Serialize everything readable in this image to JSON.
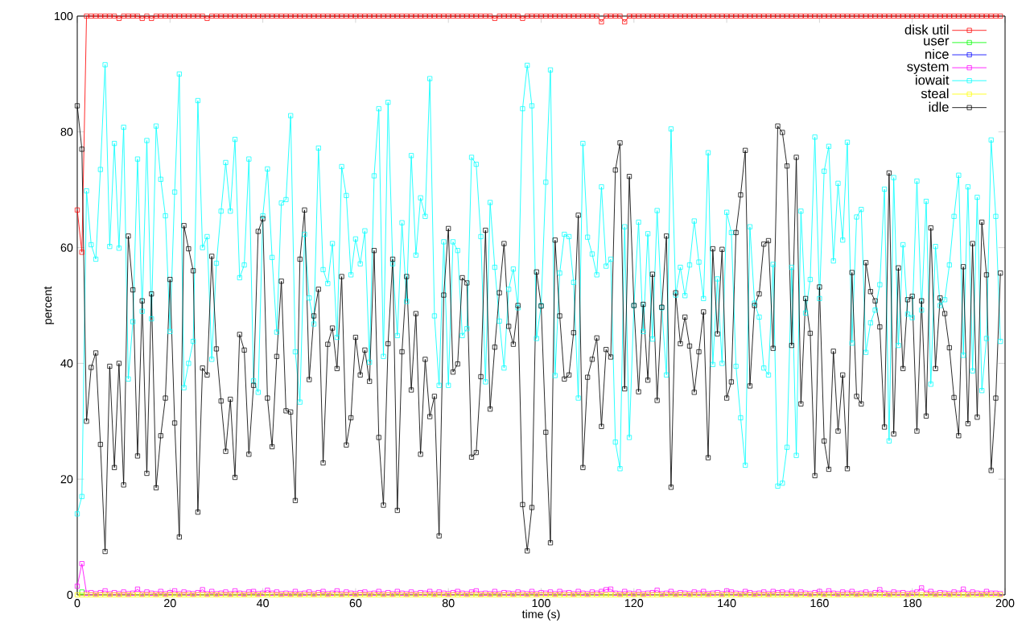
{
  "chart_data": {
    "type": "line",
    "xlabel": "time (s)",
    "ylabel": "percent",
    "x": [
      0,
      1,
      2,
      3,
      4,
      5,
      6,
      7,
      8,
      9,
      10,
      11,
      12,
      13,
      14,
      15,
      16,
      17,
      18,
      19,
      20,
      21,
      22,
      23,
      24,
      25,
      26,
      27,
      28,
      29,
      30,
      31,
      32,
      33,
      34,
      35,
      36,
      37,
      38,
      39,
      40,
      41,
      42,
      43,
      44,
      45,
      46,
      47,
      48,
      49,
      50,
      51,
      52,
      53,
      54,
      55,
      56,
      57,
      58,
      59,
      60,
      61,
      62,
      63,
      64,
      65,
      66,
      67,
      68,
      69,
      70,
      71,
      72,
      73,
      74,
      75,
      76,
      77,
      78,
      79,
      80,
      81,
      82,
      83,
      84,
      85,
      86,
      87,
      88,
      89,
      90,
      91,
      92,
      93,
      94,
      95,
      96,
      97,
      98,
      99,
      100,
      101,
      102,
      103,
      104,
      105,
      106,
      107,
      108,
      109,
      110,
      111,
      112,
      113,
      114,
      115,
      116,
      117,
      118,
      119,
      120,
      121,
      122,
      123,
      124,
      125,
      126,
      127,
      128,
      129,
      130,
      131,
      132,
      133,
      134,
      135,
      136,
      137,
      138,
      139,
      140,
      141,
      142,
      143,
      144,
      145,
      146,
      147,
      148,
      149,
      150,
      151,
      152,
      153,
      154,
      155,
      156,
      157,
      158,
      159,
      160,
      161,
      162,
      163,
      164,
      165,
      166,
      167,
      168,
      169,
      170,
      171,
      172,
      173,
      174,
      175,
      176,
      177,
      178,
      179,
      180,
      181,
      182,
      183,
      184,
      185,
      186,
      187,
      188,
      189,
      190,
      191,
      192,
      193,
      194,
      195,
      196,
      197,
      198,
      199
    ],
    "xlim": [
      0,
      200
    ],
    "ylim": [
      0,
      100
    ],
    "xticks": [
      0,
      20,
      40,
      60,
      80,
      100,
      120,
      140,
      160,
      180,
      200
    ],
    "yticks": [
      0,
      20,
      40,
      60,
      80,
      100
    ],
    "legend": "top right",
    "marker": "square",
    "line_style": "solid",
    "series": [
      {
        "name": "disk util",
        "color": "#ff0000",
        "values": [
          66.5,
          59.2,
          100,
          100,
          100,
          100,
          100,
          100,
          100,
          99.6,
          100,
          100,
          100,
          100,
          99.6,
          100,
          99.6,
          100,
          100,
          100,
          100,
          100,
          100,
          100,
          100,
          100,
          100,
          100,
          99.6,
          100,
          100,
          100,
          100,
          100,
          100,
          100,
          100,
          100,
          100,
          100,
          100,
          100,
          100,
          100,
          100,
          100,
          100,
          100,
          100,
          100,
          100,
          100,
          100,
          100,
          100,
          100,
          100,
          100,
          100,
          100,
          100,
          100,
          100,
          100,
          100,
          100,
          100,
          100,
          100,
          100,
          100,
          100,
          100,
          100,
          100,
          100,
          100,
          100,
          100,
          100,
          100,
          100,
          100,
          100,
          100,
          100,
          100,
          100,
          100,
          100,
          99.6,
          100,
          100,
          100,
          100,
          100,
          99.6,
          100,
          100,
          100,
          100,
          100,
          100,
          100,
          100,
          100,
          100,
          100,
          100,
          100,
          100,
          100,
          100,
          99,
          100,
          100,
          100,
          100,
          99,
          100,
          100,
          100,
          100,
          100,
          100,
          100,
          100,
          100,
          100,
          100,
          100,
          100,
          100,
          100,
          100,
          100,
          100,
          100,
          100,
          100,
          100,
          100,
          100,
          100,
          100,
          100,
          100,
          100,
          100,
          100,
          100,
          100,
          100,
          100,
          100,
          100,
          100,
          100,
          100,
          100,
          100,
          100,
          100,
          100,
          100,
          100,
          100,
          100,
          100,
          100,
          100,
          100,
          100,
          100,
          100,
          100,
          100,
          100,
          100,
          100,
          100,
          100,
          100,
          100,
          100,
          100,
          100,
          100,
          100,
          100,
          100,
          100,
          100,
          100,
          100,
          100,
          100,
          100,
          100,
          100
        ]
      },
      {
        "name": "user",
        "color": "#00ff00",
        "values": [
          null,
          0.5,
          null,
          null,
          null,
          null,
          null,
          null,
          null,
          null,
          null,
          null,
          null,
          null,
          null,
          null,
          null,
          null,
          null,
          null,
          null,
          null,
          null,
          null,
          null,
          null,
          null,
          null,
          null,
          null,
          null,
          null,
          null,
          null,
          null,
          null,
          null,
          null,
          null,
          null,
          null,
          null,
          null,
          null,
          null,
          null,
          null,
          null,
          null,
          null,
          null,
          null,
          null,
          null,
          null,
          null,
          null,
          null,
          null,
          null,
          null,
          null,
          null,
          null,
          null,
          null,
          null,
          null,
          null,
          null,
          null,
          null,
          null,
          null,
          null,
          null,
          null,
          null,
          null,
          null,
          null,
          null,
          null,
          null,
          null,
          null,
          null,
          null,
          null,
          null,
          null,
          null,
          null,
          null,
          null,
          null,
          null,
          null,
          null,
          null,
          null,
          null,
          null,
          null,
          null,
          null,
          null,
          null,
          null,
          null,
          null,
          null,
          null,
          null,
          null,
          null,
          null,
          null,
          null,
          null,
          null,
          null,
          null,
          null,
          null,
          null,
          null,
          null,
          null,
          null,
          null,
          null,
          null,
          null,
          null,
          null,
          null,
          null,
          null,
          null,
          null,
          null,
          null,
          null,
          null,
          null,
          null,
          null,
          null,
          null,
          null,
          null,
          null,
          null,
          null,
          null,
          null,
          null,
          null,
          null,
          null,
          null,
          null,
          null,
          null,
          null,
          null,
          null,
          null,
          null,
          null,
          null,
          null,
          null,
          null,
          null,
          null,
          null,
          null,
          null,
          null,
          null,
          null,
          null,
          null,
          null,
          null,
          null,
          null,
          null,
          null,
          null,
          null,
          null,
          null,
          null,
          null,
          null,
          null,
          null
        ]
      },
      {
        "name": "nice",
        "color": "#0000ff",
        "values": [
          null,
          null,
          null,
          null,
          null,
          null,
          null,
          null,
          null,
          null,
          null,
          null,
          null,
          null,
          null,
          null,
          null,
          null,
          null,
          null,
          null,
          null,
          null,
          null,
          null,
          null,
          null,
          null,
          null,
          null,
          null,
          null,
          null,
          null,
          null,
          null,
          null,
          null,
          null,
          null,
          null,
          null,
          null,
          null,
          null,
          null,
          null,
          null,
          null,
          null,
          null,
          null,
          null,
          null,
          null,
          null,
          null,
          null,
          null,
          null,
          null,
          null,
          null,
          null,
          null,
          null,
          null,
          null,
          null,
          null,
          null,
          null,
          null,
          null,
          null,
          null,
          null,
          null,
          null,
          null,
          null,
          null,
          null,
          null,
          null,
          null,
          null,
          null,
          null,
          null,
          null,
          null,
          null,
          null,
          null,
          null,
          null,
          null,
          null,
          null,
          null,
          null,
          null,
          null,
          null,
          null,
          null,
          null,
          null,
          null,
          null,
          null,
          null,
          null,
          null,
          null,
          null,
          null,
          null,
          null,
          null,
          null,
          null,
          null,
          null,
          null,
          null,
          null,
          null,
          null,
          null,
          null,
          null,
          null,
          null,
          null,
          null,
          null,
          null,
          null,
          null,
          null,
          null,
          null,
          null,
          null,
          null,
          null,
          null,
          null,
          null,
          null,
          null,
          null,
          null,
          null,
          null,
          null,
          null,
          null,
          null,
          null,
          null,
          null,
          null,
          null,
          null,
          null,
          null,
          null,
          null,
          null,
          null,
          null,
          null,
          null,
          null,
          null,
          null,
          null,
          null,
          null,
          null,
          null,
          null,
          null,
          null,
          null,
          null,
          null,
          null,
          null,
          null,
          null,
          null,
          null,
          null,
          null,
          null,
          null
        ]
      },
      {
        "name": "system",
        "color": "#ff00ff",
        "values": [
          1.5,
          5.4,
          0.3,
          0.4,
          0.2,
          0.4,
          0.7,
          0.2,
          0.4,
          0.2,
          0.5,
          0.2,
          0.3,
          1.0,
          0.2,
          0.5,
          0.3,
          0.2,
          0.6,
          0.2,
          0.4,
          0.7,
          0.2,
          0.5,
          0.3,
          0.2,
          0.4,
          0.9,
          0.2,
          0.6,
          0.2,
          0.3,
          0.5,
          0.2,
          0.7,
          0.3,
          0.2,
          0.5,
          0.6,
          0.2,
          0.3,
          0.8,
          0.3,
          0.5,
          0.2,
          0.3,
          0.2,
          0.6,
          0.2,
          0.3,
          0.5,
          0.2,
          0.4,
          0.6,
          0.2,
          0.3,
          0.7,
          0.2,
          0.5,
          0.3,
          0.2,
          0.4,
          0.5,
          0.2,
          0.3,
          0.6,
          0.2,
          0.4,
          0.2,
          0.6,
          0.3,
          0.2,
          0.5,
          0.2,
          0.4,
          0.3,
          0.6,
          0.2,
          0.5,
          0.3,
          0.2,
          0.4,
          0.6,
          0.3,
          0.2,
          0.5,
          0.7,
          0.2,
          0.3,
          0.2,
          0.6,
          0.2,
          0.4,
          0.3,
          0.2,
          0.5,
          0.3,
          0.2,
          0.6,
          0.2,
          0.4,
          0.3,
          0.5,
          0.2,
          0.6,
          0.3,
          0.4,
          0.2,
          0.6,
          0.3,
          0.2,
          0.5,
          0.3,
          0.6,
          0.9,
          1.0,
          0.3,
          0.2,
          0.6,
          0.3,
          0.2,
          0.5,
          0.2,
          0.3,
          0.4,
          0.8,
          0.2,
          0.3,
          0.6,
          0.2,
          0.4,
          0.3,
          0.2,
          0.5,
          0.3,
          0.6,
          0.2,
          0.3,
          0.4,
          0.2,
          0.7,
          0.5,
          0.3,
          0.2,
          0.6,
          0.4,
          0.2,
          0.3,
          0.5,
          0.2,
          0.6,
          0.4,
          0.5,
          0.3,
          0.6,
          0.2,
          0.5,
          0.3,
          0.2,
          0.4,
          0.6,
          0.2,
          0.7,
          0.3,
          0.2,
          0.5,
          0.3,
          0.6,
          0.2,
          0.3,
          0.5,
          0.2,
          0.4,
          0.9,
          0.3,
          0.2,
          0.5,
          0.3,
          0.4,
          0.2,
          0.3,
          0.5,
          1.2,
          0.3,
          0.6,
          0.2,
          0.4,
          0.3,
          0.2,
          0.5,
          0.3,
          1.0,
          0.2,
          0.5,
          0.3,
          0.2,
          0.6,
          0.3,
          0.3,
          0.2
        ]
      },
      {
        "name": "iowait",
        "color": "#00ffff",
        "values": [
          14,
          17,
          69.8,
          60.5,
          58,
          73.5,
          91.6,
          60.2,
          78,
          59.9,
          80.8,
          37.3,
          47.2,
          75.3,
          49,
          78.5,
          47.7,
          81,
          71.8,
          65.5,
          45.5,
          69.6,
          90,
          35.8,
          40,
          43.8,
          85.4,
          60,
          61.9,
          40.7,
          57.3,
          66.3,
          74.7,
          66.3,
          78.7,
          54.8,
          57,
          75.3,
          37,
          35,
          65.5,
          73.6,
          58.3,
          45.4,
          67.7,
          68.3,
          82.8,
          42,
          33.3,
          62.3,
          51.3,
          46.8,
          77.2,
          56.2,
          53.8,
          60.7,
          44.5,
          74,
          69,
          55.3,
          61.5,
          57.2,
          62.9,
          40.2,
          72.4,
          84,
          41.2,
          85.1,
          57.2,
          44.8,
          64.3,
          50.7,
          75.9,
          58.7,
          68.6,
          65.4,
          89.2,
          48.2,
          36.2,
          61,
          36.2,
          61,
          59.5,
          44.8,
          46,
          75.6,
          74.4,
          61.9,
          36.8,
          67.8,
          56.6,
          47.3,
          39.2,
          52.8,
          56.3,
          49.6,
          84,
          91.5,
          84.5,
          44.3,
          50,
          71.3,
          90.7,
          37.9,
          55.6,
          62.3,
          61.9,
          54,
          34,
          78,
          61.8,
          58.9,
          55.3,
          70.5,
          56.8,
          58,
          26.4,
          21.8,
          63.6,
          27.2,
          50,
          64.4,
          45.5,
          62.4,
          44.2,
          66.4,
          49.6,
          38,
          80.5,
          51.8,
          56.6,
          51.7,
          57,
          64.6,
          57.5,
          51.2,
          76.4,
          39.8,
          54.6,
          40,
          66.1,
          62.6,
          39.5,
          30.6,
          22.4,
          63.6,
          50.4,
          48,
          39.2,
          38,
          57.1,
          18.8,
          19.3,
          25.5,
          56.6,
          24.1,
          66.3,
          48.7,
          54.5,
          79.1,
          51.2,
          73.2,
          77.5,
          57.7,
          71.1,
          61.3,
          78.2,
          43.5,
          65.3,
          66.6,
          41.9,
          47,
          49.2,
          53.6,
          70.1,
          26.6,
          72.1,
          43.1,
          60.5,
          48.5,
          47.9,
          71.5,
          49.2,
          68,
          36.4,
          60.2,
          50,
          51,
          57,
          65.4,
          72.5,
          41.4,
          70.5,
          38.7,
          68.7,
          35.3,
          44.3,
          78.6,
          65.4,
          43.8
        ]
      },
      {
        "name": "steal",
        "color": "#ffff00",
        "values": [
          0,
          0,
          0,
          0,
          0,
          0,
          0,
          0,
          0,
          0,
          0,
          0,
          0,
          0,
          0,
          0,
          0,
          0,
          0,
          0,
          0,
          0,
          0,
          0,
          0,
          0,
          0,
          0,
          0,
          0,
          0,
          0,
          0,
          0,
          0,
          0,
          0,
          0,
          0,
          0,
          0,
          0,
          0,
          0,
          0,
          0,
          0,
          0,
          0,
          0,
          0,
          0,
          0,
          0,
          0,
          0,
          0,
          0,
          0,
          0,
          0,
          0,
          0,
          0,
          0,
          0,
          0,
          0,
          0,
          0,
          0,
          0,
          0,
          0,
          0,
          0,
          0,
          0,
          0,
          0,
          0,
          0,
          0,
          0,
          0,
          0,
          0,
          0,
          0,
          0,
          0,
          0,
          0,
          0,
          0,
          0,
          0,
          0,
          0,
          0,
          0,
          0,
          0,
          0,
          0,
          0,
          0,
          0,
          0,
          0,
          0,
          0,
          0,
          0,
          0,
          0,
          0,
          0,
          0,
          0,
          0,
          0,
          0,
          0,
          0,
          0,
          0,
          0,
          0,
          0,
          0,
          0,
          0,
          0,
          0,
          0,
          0,
          0,
          0,
          0,
          0,
          0,
          0,
          0,
          0,
          0,
          0,
          0,
          0,
          0,
          0,
          0,
          0,
          0,
          0,
          0,
          0,
          0,
          0,
          0,
          0,
          0,
          0,
          0,
          0,
          0,
          0,
          0,
          0,
          0,
          0,
          0,
          0,
          0,
          0,
          0,
          0,
          0,
          0,
          0,
          0,
          0,
          0,
          0,
          0,
          0,
          0,
          0,
          0,
          0,
          0,
          0,
          0,
          0,
          0,
          0,
          0,
          0,
          0,
          0
        ]
      },
      {
        "name": "idle",
        "color": "#000000",
        "values": [
          84.5,
          77,
          30,
          39.3,
          41.8,
          26,
          7.5,
          39.5,
          22,
          40,
          19,
          62,
          52.7,
          24,
          50.8,
          21,
          52,
          18.5,
          27.5,
          34,
          54.5,
          29.7,
          10,
          63.8,
          59.8,
          56,
          14.3,
          39.2,
          38,
          58.5,
          42.5,
          33.5,
          24.8,
          33.8,
          20.3,
          45,
          42.3,
          24.3,
          36.2,
          62.8,
          65,
          34,
          25.6,
          41.2,
          54.2,
          31.8,
          31.6,
          16.3,
          58,
          66.5,
          37.2,
          48.2,
          52.8,
          22.8,
          43.3,
          46.1,
          39.1,
          55,
          25.9,
          30.6,
          44.5,
          38,
          42.3,
          36.9,
          59.5,
          27.2,
          15.5,
          43.4,
          58,
          14.6,
          42,
          55,
          35.4,
          48.6,
          24.3,
          40.7,
          30.8,
          34.3,
          10.2,
          51.8,
          63.3,
          38.5,
          39.9,
          54.8,
          53.9,
          23.8,
          24.6,
          37.7,
          63,
          32.1,
          42.8,
          52.2,
          60.7,
          46.4,
          43.3,
          50,
          15.6,
          7.6,
          15.1,
          55.8,
          49.9,
          28.1,
          9,
          61.3,
          48.2,
          37.3,
          38,
          45.3,
          65.6,
          22,
          37.6,
          40.7,
          44.4,
          29.1,
          42.4,
          41.1,
          73.4,
          78.1,
          35.6,
          72.3,
          50,
          35.1,
          50.2,
          37.1,
          55.4,
          33.6,
          49.7,
          62,
          18.6,
          52.2,
          43.4,
          48,
          43,
          35,
          42,
          48.9,
          23.7,
          59.8,
          45.1,
          59.7,
          34,
          36.8,
          62.6,
          69.1,
          76.8,
          36.1,
          50,
          52,
          60.6,
          61.2,
          42.6,
          81,
          79.9,
          74.1,
          43.1,
          75.6,
          33,
          51.2,
          45.2,
          20.6,
          53.2,
          26.6,
          21.7,
          42.1,
          28.3,
          38,
          21.8,
          55.7,
          34.3,
          33,
          57.4,
          52.4,
          50.8,
          46.3,
          29,
          72.9,
          27.8,
          56.5,
          39.1,
          51,
          51.6,
          28.3,
          50.8,
          30.9,
          63.4,
          39.1,
          51.3,
          48.6,
          42.7,
          34.1,
          27.5,
          56.7,
          29.6,
          60.7,
          30.7,
          64.4,
          55.3,
          21.5,
          34,
          55.6
        ]
      }
    ]
  }
}
